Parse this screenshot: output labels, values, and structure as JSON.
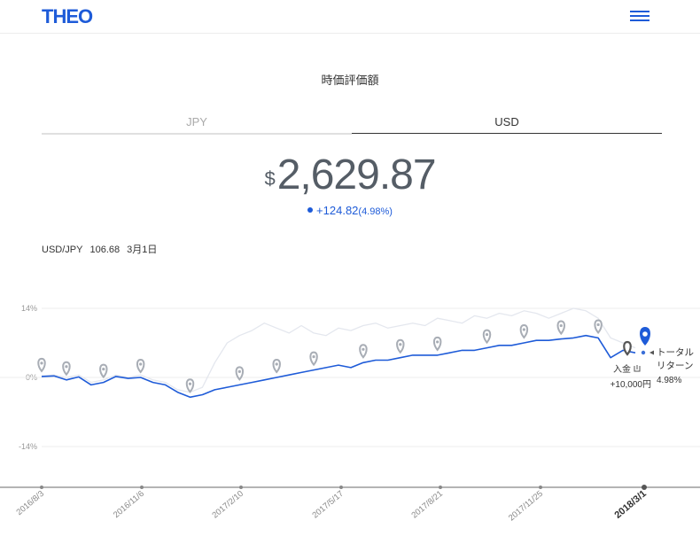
{
  "header": {
    "logo": "THEO",
    "menu_icon": "hamburger-menu-icon"
  },
  "title": "時価評価額",
  "tabs": [
    {
      "label": "JPY",
      "active": false
    },
    {
      "label": "USD",
      "active": true
    }
  ],
  "valuation": {
    "currency_symbol": "$",
    "amount": "2,629.87",
    "change": "+124.82",
    "change_pct": "(4.98%)"
  },
  "rate": {
    "pair": "USD/JPY",
    "value": "106.68",
    "date": "3月1日"
  },
  "colors": {
    "accent": "#1e5bd8",
    "benchmark": "#e4e7ee",
    "marker": "#a8adb5"
  },
  "chart_data": {
    "type": "line",
    "y_ticks": [
      "14%",
      "0%",
      "-14%"
    ],
    "x_tick_labels": [
      "2016/8/3",
      "2016/11/6",
      "2017/2/10",
      "2017/5/17",
      "2017/8/21",
      "2017/11/25",
      "2018/3/1"
    ],
    "ylim": [
      -22,
      16
    ],
    "series": [
      {
        "name": "",
        "color": "#1e5bd8",
        "values": [
          0.2,
          0.3,
          -0.5,
          0.1,
          -1.5,
          -1.0,
          0.2,
          -0.2,
          0.0,
          -1.0,
          -1.5,
          -3.0,
          -4.0,
          -3.5,
          -2.5,
          -2.0,
          -1.5,
          -1.0,
          -0.5,
          0.0,
          0.5,
          1.0,
          1.5,
          2.0,
          2.5,
          2.0,
          3.0,
          3.5,
          3.5,
          4.0,
          4.5,
          4.5,
          4.5,
          5.0,
          5.5,
          5.5,
          6.0,
          6.5,
          6.5,
          7.0,
          7.5,
          7.5,
          7.8,
          8.0,
          8.5,
          8.0,
          4.0,
          5.5,
          5.0
        ]
      },
      {
        "name": "",
        "color": "#e4e7ee",
        "values": [
          0.3,
          0.5,
          0.0,
          0.5,
          -1.0,
          -0.5,
          0.5,
          0.0,
          0.5,
          -0.5,
          -1.0,
          -2.5,
          -3.0,
          -2.0,
          3.0,
          7.0,
          8.5,
          9.5,
          11.0,
          10.0,
          9.0,
          10.5,
          9.0,
          8.5,
          10.0,
          9.5,
          10.5,
          11.0,
          10.0,
          10.5,
          11.0,
          10.5,
          12.0,
          11.5,
          11.0,
          12.5,
          12.0,
          13.0,
          12.5,
          13.5,
          13.0,
          12.0,
          13.0,
          14.0,
          13.5,
          12.0,
          8.0,
          7.0,
          6.0
        ]
      }
    ],
    "events": [
      {
        "label": "入金",
        "amount": "+10,000円"
      }
    ],
    "final_label": [
      "トータル",
      "リターン"
    ],
    "final_value": "4.98%"
  }
}
